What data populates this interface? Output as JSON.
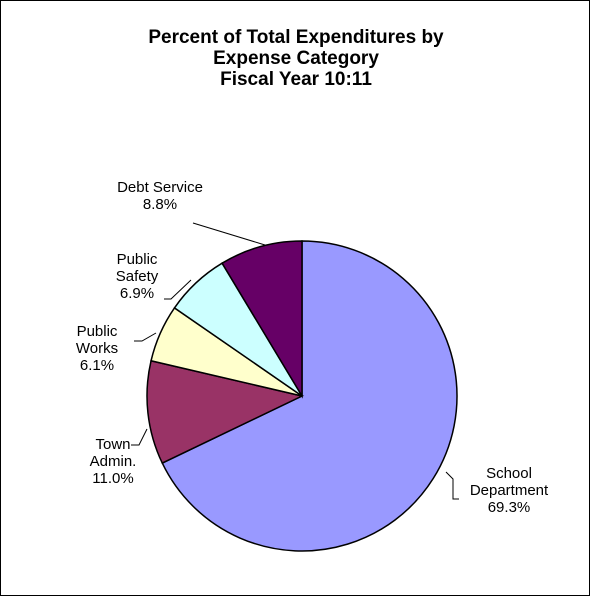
{
  "chart_data": {
    "type": "pie",
    "title": [
      "Percent of Total Expenditures by",
      "Expense Category",
      "Fiscal Year 10:11"
    ],
    "slices": [
      {
        "label": [
          "School",
          "Department"
        ],
        "percent_label": "69.3%",
        "value": 69.3,
        "color": "#9999ff"
      },
      {
        "label": [
          "Town",
          "Admin."
        ],
        "percent_label": "11.0%",
        "value": 11.0,
        "color": "#993366"
      },
      {
        "label": [
          "Public",
          "Works"
        ],
        "percent_label": "6.1%",
        "value": 6.1,
        "color": "#ffffcc"
      },
      {
        "label": [
          "Public",
          "Safety"
        ],
        "percent_label": "6.9%",
        "value": 6.9,
        "color": "#ccffff"
      },
      {
        "label": [
          "Debt Service"
        ],
        "percent_label": "8.8%",
        "value": 8.8,
        "color": "#660066"
      }
    ],
    "start": "12 o'clock",
    "direction": "clockwise"
  }
}
